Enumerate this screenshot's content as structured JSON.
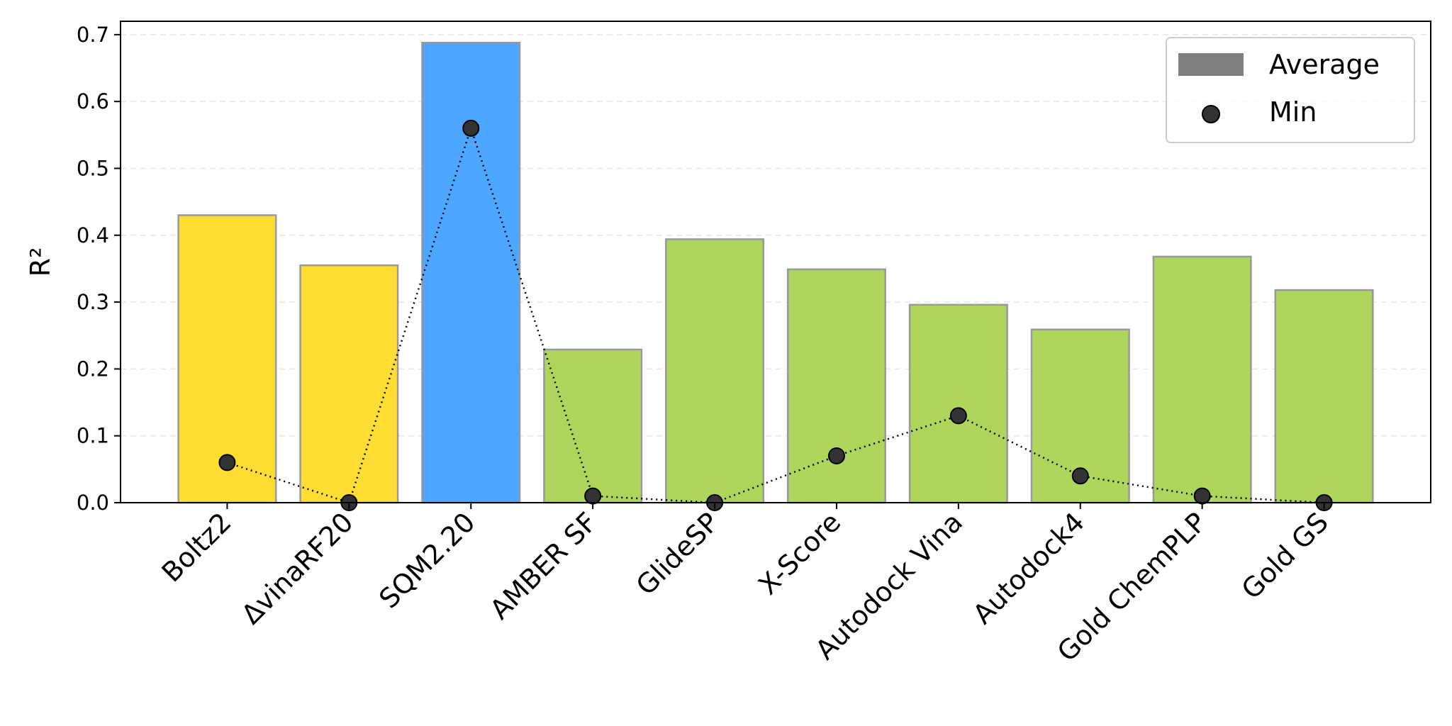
{
  "chart_data": {
    "type": "bar",
    "title": "",
    "xlabel": "",
    "ylabel": "R²",
    "ylim": [
      0,
      0.72
    ],
    "yticks": [
      0.0,
      0.1,
      0.2,
      0.3,
      0.4,
      0.5,
      0.6,
      0.7
    ],
    "ytick_labels": [
      "0.0",
      "0.1",
      "0.2",
      "0.3",
      "0.4",
      "0.5",
      "0.6",
      "0.7"
    ],
    "grid": "horizontal dashed",
    "legend_position": "top-right",
    "categories": [
      "Boltz2",
      "ΔvinaRF20",
      "SQM2.20",
      "AMBER SF",
      "GlideSP",
      "X-Score",
      "Autodock Vina",
      "Autodock4",
      "Gold ChemPLP",
      "Gold GS"
    ],
    "bar_colors": [
      "#FFDD33",
      "#FFDD33",
      "#4DA6FF",
      "#AED65D",
      "#AED65D",
      "#AED65D",
      "#AED65D",
      "#AED65D",
      "#AED65D",
      "#AED65D"
    ],
    "series": [
      {
        "name": "Average",
        "kind": "bar",
        "legend_color": "#808080",
        "values": [
          0.43,
          0.355,
          0.688,
          0.229,
          0.394,
          0.349,
          0.296,
          0.259,
          0.368,
          0.318
        ]
      },
      {
        "name": "Min",
        "kind": "scatter-line",
        "marker_color": "#333333",
        "line_style": "dotted",
        "values": [
          0.06,
          0.0,
          0.56,
          0.01,
          0.0,
          0.07,
          0.13,
          0.04,
          0.01,
          0.0
        ]
      }
    ]
  }
}
